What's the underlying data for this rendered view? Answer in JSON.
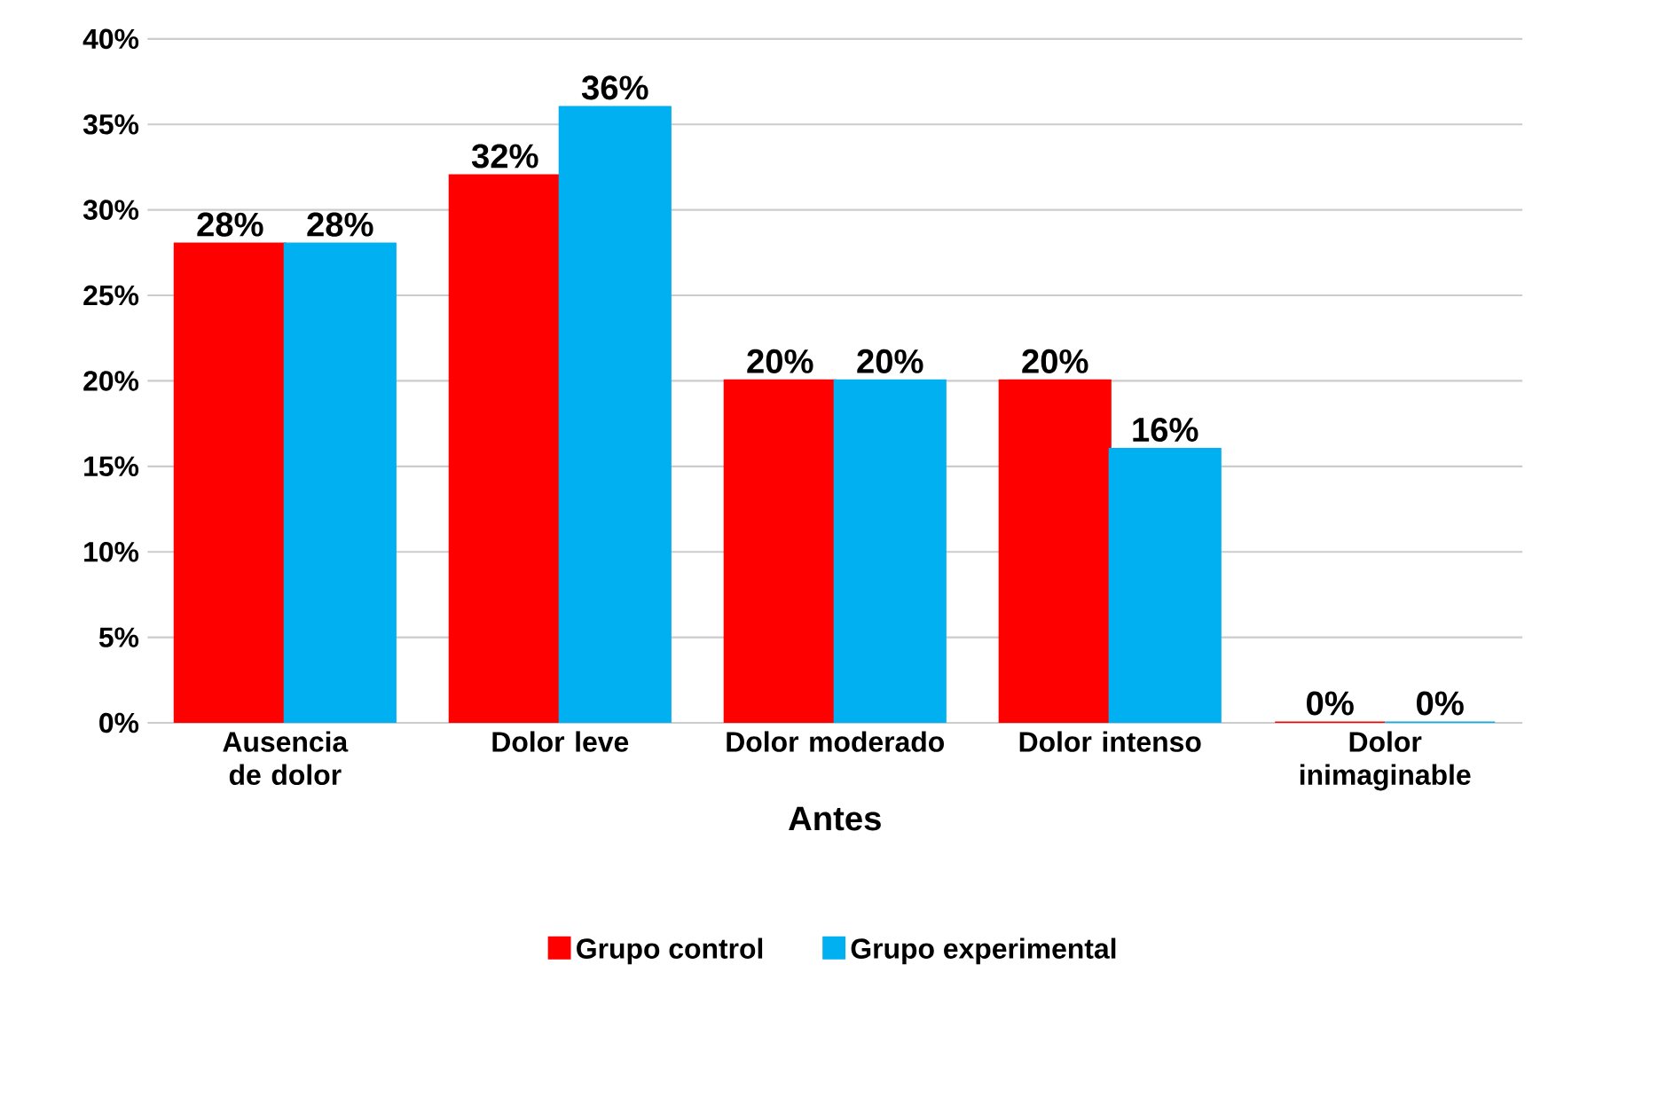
{
  "chart_data": {
    "type": "bar",
    "xlabel": "Antes",
    "categories": [
      "Ausencia de dolor",
      "Dolor leve",
      "Dolor moderado",
      "Dolor intenso",
      "Dolor inimaginable"
    ],
    "series": [
      {
        "name": "Grupo control",
        "color": "#ff0000",
        "values": [
          28,
          32,
          20,
          20,
          0
        ],
        "value_labels": [
          "28%",
          "32%",
          "20%",
          "20%",
          "0%"
        ]
      },
      {
        "name": "Grupo experimental",
        "color": "#00b0f0",
        "values": [
          28,
          36,
          20,
          16,
          0
        ],
        "value_labels": [
          "28%",
          "36%",
          "20%",
          "16%",
          "0%"
        ]
      }
    ],
    "ylim": [
      0,
      40
    ],
    "yticks": [
      {
        "value": 0,
        "label": "0%"
      },
      {
        "value": 5,
        "label": "5%"
      },
      {
        "value": 10,
        "label": "10%"
      },
      {
        "value": 15,
        "label": "15%"
      },
      {
        "value": 20,
        "label": "20%"
      },
      {
        "value": 25,
        "label": "25%"
      },
      {
        "value": 30,
        "label": "30%"
      },
      {
        "value": 35,
        "label": "35%"
      },
      {
        "value": 40,
        "label": "40%"
      }
    ],
    "grid": "y",
    "legend": "bottom"
  }
}
